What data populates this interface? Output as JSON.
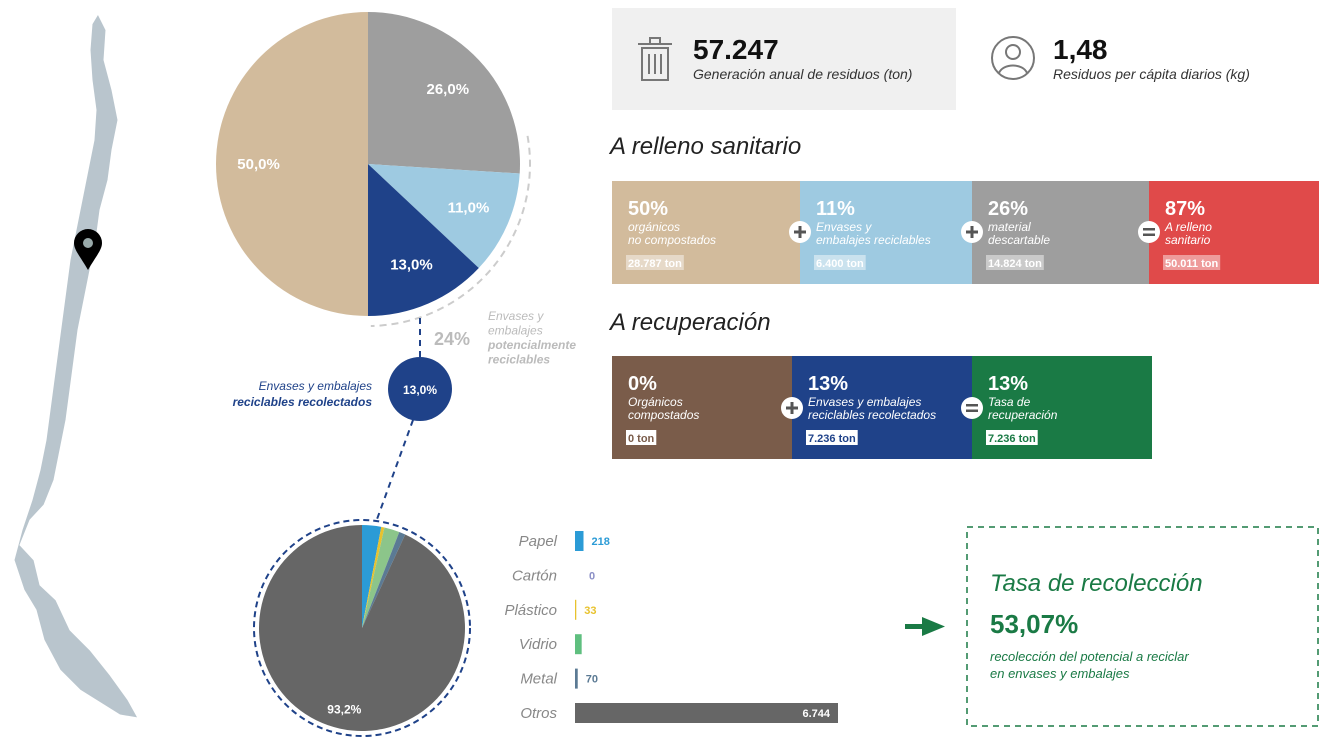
{
  "chart_data": [
    {
      "type": "pie",
      "values": [
        26,
        11,
        13,
        50
      ],
      "value_labels": [
        "26,0%",
        "11,0%",
        "13,0%",
        "50,0%"
      ],
      "colors": [
        "#9e9e9e",
        "#9ecae1",
        "#1f4289",
        "#d2bb9c"
      ]
    },
    {
      "type": "pie",
      "values": [
        3.0,
        0,
        0.5,
        2.4,
        1.0,
        93.2
      ],
      "value_labels": [
        null,
        null,
        null,
        null,
        null,
        "93,2%"
      ],
      "colors": [
        "#2b9bd6",
        "#8b8fc6",
        "#e8c22d",
        "#8cc58a",
        "#5b7a94",
        "#666666"
      ]
    },
    {
      "type": "bar",
      "orientation": "horizontal",
      "categories": [
        "Papel",
        "Cartón",
        "Plástico",
        "Vidrio",
        "Metal",
        "Otros"
      ],
      "values": [
        218,
        0,
        33,
        171,
        70,
        6744
      ],
      "value_labels": [
        "218",
        "0",
        "33",
        null,
        "70",
        "6.744"
      ],
      "colors": [
        "#2b9bd6",
        "#8b8fc6",
        "#e8c22d",
        "#5fbf7f",
        "#5b7a94",
        "#666666"
      ]
    }
  ],
  "stats": [
    {
      "value": "57.247",
      "label": "Generación anual de residuos (ton)"
    },
    {
      "value": "1,48",
      "label": "Residuos per cápita diarios (kg)"
    }
  ],
  "relleno": {
    "title": "A relleno sanitario",
    "boxes": [
      {
        "percent": "50%",
        "lines": [
          "orgánicos",
          "no compostados"
        ],
        "tons": "28.787 ton",
        "color": "#d2bb9c"
      },
      {
        "percent": "11%",
        "lines": [
          "Envases y",
          "embalajes reciclables"
        ],
        "tons": "6.400 ton",
        "color": "#9ecae1"
      },
      {
        "percent": "26%",
        "lines": [
          "material",
          "descartable"
        ],
        "tons": "14.824 ton",
        "color": "#9e9e9e"
      },
      {
        "percent": "87%",
        "lines": [
          "A relleno",
          "sanitario"
        ],
        "tons": "50.011 ton",
        "color": "#e04a4a"
      }
    ]
  },
  "recuperacion": {
    "title": "A recuperación",
    "boxes": [
      {
        "percent": "0%",
        "lines": [
          "Orgánicos",
          "compostados"
        ],
        "tons": "0 ton",
        "color": "#7a5c4a"
      },
      {
        "percent": "13%",
        "lines": [
          "Envases y embalajes",
          "reciclables recolectados"
        ],
        "tons": "7.236 ton",
        "color": "#1f4289"
      },
      {
        "percent": "13%",
        "lines": [
          "Tasa de",
          "recuperación"
        ],
        "tons": "7.236 ton",
        "color": "#1a7a45"
      }
    ]
  },
  "annotations": {
    "potential": {
      "percent": "24%",
      "lines": [
        "Envases y",
        "embalajes"
      ],
      "bold_lines": [
        "potencialmente",
        "reciclables"
      ]
    },
    "collected": {
      "value": "13,0%",
      "lines": [
        "Envases y embalajes"
      ],
      "bold_lines": [
        "reciclables recolectados"
      ]
    }
  },
  "tasa": {
    "title": "Tasa de recolección",
    "value": "53,07%",
    "lines": [
      "recolección del potencial a reciclar",
      "en envases y embalajes"
    ]
  }
}
